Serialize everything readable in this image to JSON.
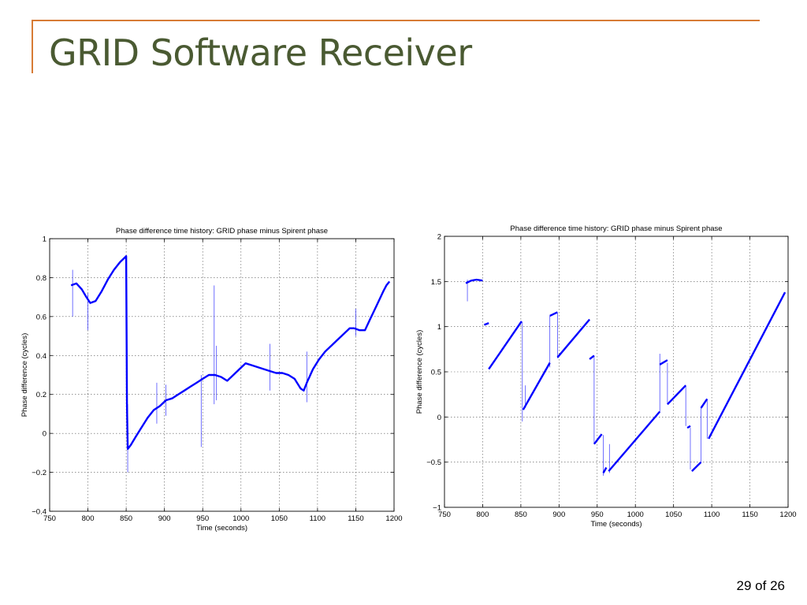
{
  "slide": {
    "title": "GRID Software Receiver",
    "page_number": "29 of 26"
  },
  "colors": {
    "accent": "#d77b35",
    "title": "#4a5a32",
    "series": "#0000ff"
  },
  "chart_data": [
    {
      "type": "line",
      "title": "Phase difference time history: GRID phase minus Spirent phase",
      "xlabel": "Time (seconds)",
      "ylabel": "Phase difference (cycles)",
      "xlim": [
        750,
        1200
      ],
      "ylim": [
        -0.4,
        1
      ],
      "xticks": [
        750,
        800,
        850,
        900,
        950,
        1000,
        1050,
        1100,
        1150,
        1200
      ],
      "yticks": [
        -0.4,
        -0.2,
        0,
        0.2,
        0.4,
        0.6,
        0.8,
        1
      ],
      "yticklabels": [
        "−0.4",
        "−0.2",
        "0",
        "0.2",
        "0.4",
        "0.6",
        "0.8",
        "1"
      ],
      "grid": true,
      "series": [
        {
          "x": [
            778,
            785,
            792,
            798,
            803,
            810,
            818,
            826,
            834,
            842,
            850,
            851,
            852,
            856,
            862,
            870,
            878,
            886,
            894,
            902,
            910,
            918,
            926,
            934,
            942,
            950,
            958,
            966,
            974,
            982,
            990,
            998,
            1006,
            1014,
            1022,
            1030,
            1038,
            1046,
            1054,
            1062,
            1070,
            1078,
            1082,
            1086,
            1094,
            1102,
            1110,
            1118,
            1126,
            1134,
            1142,
            1148,
            1155,
            1162,
            1168,
            1174,
            1180,
            1186,
            1190,
            1194
          ],
          "y": [
            0.76,
            0.77,
            0.74,
            0.7,
            0.67,
            0.68,
            0.73,
            0.79,
            0.84,
            0.88,
            0.91,
            0.15,
            -0.08,
            -0.06,
            -0.02,
            0.03,
            0.08,
            0.12,
            0.14,
            0.17,
            0.18,
            0.2,
            0.22,
            0.24,
            0.26,
            0.28,
            0.3,
            0.3,
            0.29,
            0.27,
            0.3,
            0.33,
            0.36,
            0.35,
            0.34,
            0.33,
            0.32,
            0.31,
            0.31,
            0.3,
            0.28,
            0.23,
            0.22,
            0.26,
            0.33,
            0.38,
            0.42,
            0.45,
            0.48,
            0.51,
            0.54,
            0.54,
            0.53,
            0.53,
            0.58,
            0.63,
            0.68,
            0.73,
            0.76,
            0.78
          ]
        }
      ],
      "spikes": [
        {
          "x": 780,
          "y0": 0.6,
          "y1": 0.84
        },
        {
          "x": 800,
          "y0": 0.53,
          "y1": 0.72
        },
        {
          "x": 852,
          "y0": -0.2,
          "y1": 0.15
        },
        {
          "x": 890,
          "y0": 0.05,
          "y1": 0.26
        },
        {
          "x": 902,
          "y0": 0.09,
          "y1": 0.25
        },
        {
          "x": 948,
          "y0": -0.07,
          "y1": 0.3
        },
        {
          "x": 965,
          "y0": 0.15,
          "y1": 0.76
        },
        {
          "x": 968,
          "y0": 0.17,
          "y1": 0.45
        },
        {
          "x": 1038,
          "y0": 0.22,
          "y1": 0.46
        },
        {
          "x": 1086,
          "y0": 0.16,
          "y1": 0.42
        },
        {
          "x": 1150,
          "y0": 0.5,
          "y1": 0.64
        }
      ]
    },
    {
      "type": "line",
      "title": "Phase difference time history: GRID phase minus Spirent phase",
      "xlabel": "Time (seconds)",
      "ylabel": "Phase difference (cycles)",
      "xlim": [
        750,
        1200
      ],
      "ylim": [
        -1,
        2
      ],
      "xticks": [
        750,
        800,
        850,
        900,
        950,
        1000,
        1050,
        1100,
        1150,
        1200
      ],
      "yticks": [
        -1,
        -0.5,
        0,
        0.5,
        1,
        1.5,
        2
      ],
      "yticklabels": [
        "−1",
        "−0.5",
        "0",
        "0.5",
        "1",
        "1.5",
        "2"
      ],
      "grid": true,
      "segments": [
        {
          "x": [
            778,
            785,
            792,
            800
          ],
          "y": [
            1.48,
            1.51,
            1.52,
            1.51
          ]
        },
        {
          "x": [
            802,
            808
          ],
          "y": [
            1.02,
            1.04
          ]
        },
        {
          "x": [
            808,
            851
          ],
          "y": [
            0.53,
            1.06
          ]
        },
        {
          "x": [
            853,
            888
          ],
          "y": [
            0.08,
            0.6
          ]
        },
        {
          "x": [
            888,
            898
          ],
          "y": [
            1.12,
            1.16
          ]
        },
        {
          "x": [
            898,
            940
          ],
          "y": [
            0.66,
            1.08
          ]
        },
        {
          "x": [
            940,
            946
          ],
          "y": [
            0.64,
            0.68
          ]
        },
        {
          "x": [
            946,
            956
          ],
          "y": [
            -0.3,
            -0.19
          ]
        },
        {
          "x": [
            958,
            962
          ],
          "y": [
            -0.62,
            -0.56
          ]
        },
        {
          "x": [
            965,
            1032
          ],
          "y": [
            -0.6,
            0.06
          ]
        },
        {
          "x": [
            1032,
            1042
          ],
          "y": [
            0.58,
            0.63
          ]
        },
        {
          "x": [
            1042,
            1066
          ],
          "y": [
            0.14,
            0.35
          ]
        },
        {
          "x": [
            1068,
            1072
          ],
          "y": [
            -0.12,
            -0.1
          ]
        },
        {
          "x": [
            1074,
            1086
          ],
          "y": [
            -0.6,
            -0.5
          ]
        },
        {
          "x": [
            1086,
            1094
          ],
          "y": [
            0.1,
            0.2
          ]
        },
        {
          "x": [
            1096,
            1196
          ],
          "y": [
            -0.24,
            1.38
          ]
        }
      ],
      "spikes": [
        {
          "x": 780,
          "y0": 1.28,
          "y1": 1.52
        },
        {
          "x": 852,
          "y0": -0.05,
          "y1": 1.05
        },
        {
          "x": 856,
          "y0": 0.1,
          "y1": 0.35
        },
        {
          "x": 888,
          "y0": 0.55,
          "y1": 1.12
        },
        {
          "x": 898,
          "y0": 0.65,
          "y1": 1.15
        },
        {
          "x": 946,
          "y0": -0.3,
          "y1": 0.68
        },
        {
          "x": 958,
          "y0": -0.65,
          "y1": -0.2
        },
        {
          "x": 966,
          "y0": -0.62,
          "y1": -0.3
        },
        {
          "x": 1032,
          "y0": 0.05,
          "y1": 0.7
        },
        {
          "x": 1042,
          "y0": 0.15,
          "y1": 0.6
        },
        {
          "x": 1066,
          "y0": -0.1,
          "y1": 0.34
        },
        {
          "x": 1072,
          "y0": -0.58,
          "y1": -0.12
        },
        {
          "x": 1086,
          "y0": -0.5,
          "y1": 0.1
        },
        {
          "x": 1094,
          "y0": -0.24,
          "y1": 0.2
        }
      ]
    }
  ]
}
